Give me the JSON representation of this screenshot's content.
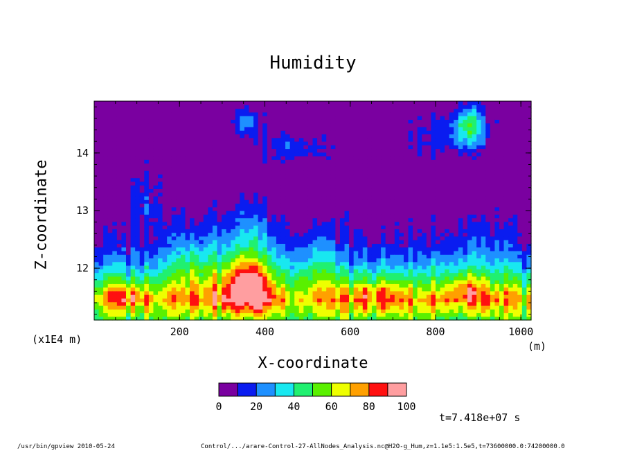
{
  "chart_data": {
    "type": "heatmap",
    "title": "Humidity",
    "xlabel": "X-coordinate",
    "ylabel": "Z-coordinate",
    "x_unit": "(m)",
    "y_scale_label": "(x1E4 m)",
    "xlim": [
      0,
      1024
    ],
    "ylim": [
      11.1,
      14.9
    ],
    "x_ticks": [
      200,
      400,
      600,
      800,
      1000
    ],
    "y_ticks": [
      12,
      13,
      14
    ],
    "colorbar": {
      "levels": [
        0,
        10,
        20,
        30,
        40,
        50,
        60,
        70,
        80,
        90,
        100
      ],
      "tick_labels": [
        "0",
        "20",
        "40",
        "60",
        "80",
        "100"
      ],
      "colors": [
        "#7a00a0",
        "#0a1cf0",
        "#1e90ff",
        "#18e8f0",
        "#20f070",
        "#5af000",
        "#eeff00",
        "#ffa000",
        "#ff1010",
        "#ff9ea0"
      ]
    },
    "field": {
      "base_profile": [
        [
          11.1,
          50
        ],
        [
          11.25,
          60
        ],
        [
          11.45,
          72
        ],
        [
          11.6,
          62
        ],
        [
          11.75,
          48
        ],
        [
          11.95,
          35
        ],
        [
          12.15,
          22
        ],
        [
          12.4,
          12
        ],
        [
          12.8,
          5
        ],
        [
          13.2,
          1
        ],
        [
          14.9,
          0
        ]
      ],
      "features": [
        {
          "x": 70,
          "z": 11.55,
          "amp": 18,
          "sx": 40,
          "sz": 0.18
        },
        {
          "x": 360,
          "z": 11.75,
          "amp": 35,
          "sx": 50,
          "sz": 0.4
        },
        {
          "x": 360,
          "z": 12.2,
          "amp": 30,
          "sx": 70,
          "sz": 0.9
        },
        {
          "x": 230,
          "z": 12.0,
          "amp": 22,
          "sx": 60,
          "sz": 0.7
        },
        {
          "x": 520,
          "z": 12.1,
          "amp": 18,
          "sx": 50,
          "sz": 0.6
        },
        {
          "x": 660,
          "z": 11.6,
          "amp": 14,
          "sx": 60,
          "sz": 0.2
        },
        {
          "x": 870,
          "z": 11.65,
          "amp": 22,
          "sx": 45,
          "sz": 0.25
        },
        {
          "x": 880,
          "z": 12.2,
          "amp": 10,
          "sx": 70,
          "sz": 0.7
        },
        {
          "x": 350,
          "z": 14.55,
          "amp": 24,
          "sx": 40,
          "sz": 0.25
        },
        {
          "x": 470,
          "z": 14.1,
          "amp": 18,
          "sx": 80,
          "sz": 0.3
        },
        {
          "x": 880,
          "z": 14.5,
          "amp": 40,
          "sx": 35,
          "sz": 0.35
        },
        {
          "x": 830,
          "z": 14.3,
          "amp": 18,
          "sx": 80,
          "sz": 0.4
        },
        {
          "x": 120,
          "z": 13.2,
          "amp": 14,
          "sx": 40,
          "sz": 0.5
        }
      ]
    }
  },
  "timestamp": "t=7.418e+07 s",
  "footer": {
    "left": "/usr/bin/gpview   2010-05-24",
    "right": "Control/.../arare-Control-27-AllNodes_Analysis.nc@H2O-g_Hum,z=1.1e5:1.5e5,t=73600000.0:74200000.0"
  }
}
